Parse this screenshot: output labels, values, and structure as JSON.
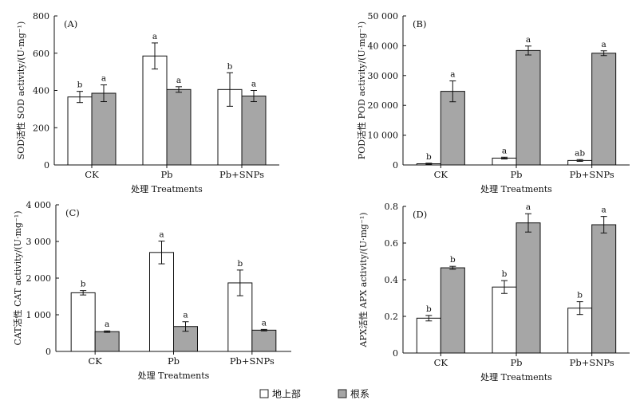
{
  "legend": {
    "shoot_label": "地上部",
    "root_label": "根系",
    "shoot_color": "#ffffff",
    "root_color": "#a6a6a6"
  },
  "chart_data": [
    {
      "type": "bar",
      "panel": "(A)",
      "categories": [
        "CK",
        "Pb",
        "Pb+SNPs"
      ],
      "xlabel": "处理 Treatments",
      "ylabel": "SOD活性 SOD activity/(U·mg⁻¹)",
      "ylim": [
        0,
        800
      ],
      "yticks": [
        0,
        200,
        400,
        600,
        800
      ],
      "ytick_labels": [
        "0",
        "200",
        "400",
        "600",
        "800"
      ],
      "series": [
        {
          "name": "地上部",
          "values": [
            365,
            585,
            405
          ],
          "errors": [
            30,
            70,
            90
          ],
          "letters": [
            "b",
            "a",
            "b"
          ]
        },
        {
          "name": "根系",
          "values": [
            385,
            405,
            370
          ],
          "errors": [
            45,
            15,
            30
          ],
          "letters": [
            "a",
            "a",
            "a"
          ]
        }
      ]
    },
    {
      "type": "bar",
      "panel": "(B)",
      "categories": [
        "CK",
        "Pb",
        "Pb+SNPs"
      ],
      "xlabel": "处理 Treatments",
      "ylabel": "POD活性 POD activity/(U·mg⁻¹)",
      "ylim": [
        0,
        50000
      ],
      "yticks": [
        0,
        10000,
        20000,
        30000,
        40000,
        50000
      ],
      "ytick_labels": [
        "0",
        "10 000",
        "20 000",
        "30 000",
        "40 000",
        "50 000"
      ],
      "series": [
        {
          "name": "地上部",
          "values": [
            400,
            2300,
            1500
          ],
          "errors": [
            200,
            300,
            300
          ],
          "letters": [
            "b",
            "a",
            "ab"
          ]
        },
        {
          "name": "根系",
          "values": [
            24700,
            38400,
            37500
          ],
          "errors": [
            3500,
            1500,
            800
          ],
          "letters": [
            "a",
            "a",
            "a"
          ]
        }
      ]
    },
    {
      "type": "bar",
      "panel": "(C)",
      "categories": [
        "CK",
        "Pb",
        "Pb+SNPs"
      ],
      "xlabel": "处理 Treatments",
      "ylabel": "CAT活性 CAT activity/(U·mg⁻¹)",
      "ylim": [
        0,
        4000
      ],
      "yticks": [
        0,
        1000,
        2000,
        3000,
        4000
      ],
      "ytick_labels": [
        "0",
        "1 000",
        "2 000",
        "3 000",
        "4 000"
      ],
      "series": [
        {
          "name": "地上部",
          "values": [
            1600,
            2700,
            1870
          ],
          "errors": [
            60,
            310,
            350
          ],
          "letters": [
            "b",
            "a",
            "b"
          ]
        },
        {
          "name": "根系",
          "values": [
            540,
            680,
            580
          ],
          "errors": [
            20,
            130,
            20
          ],
          "letters": [
            "a",
            "a",
            "a"
          ]
        }
      ]
    },
    {
      "type": "bar",
      "panel": "(D)",
      "categories": [
        "CK",
        "Pb",
        "Pb+SNPs"
      ],
      "xlabel": "处理 Treatments",
      "ylabel": "APX活性 APX activity/(U·mg⁻¹)",
      "ylim": [
        0,
        0.8
      ],
      "yticks": [
        0,
        0.2,
        0.4,
        0.6,
        0.8
      ],
      "ytick_labels": [
        "0",
        "0.2",
        "0.4",
        "0.6",
        "0.8"
      ],
      "series": [
        {
          "name": "地上部",
          "values": [
            0.19,
            0.36,
            0.245
          ],
          "errors": [
            0.015,
            0.035,
            0.035
          ],
          "letters": [
            "b",
            "b",
            "b"
          ]
        },
        {
          "name": "根系",
          "values": [
            0.465,
            0.71,
            0.7
          ],
          "errors": [
            0.008,
            0.05,
            0.045
          ],
          "letters": [
            "b",
            "a",
            "a"
          ]
        }
      ]
    }
  ]
}
